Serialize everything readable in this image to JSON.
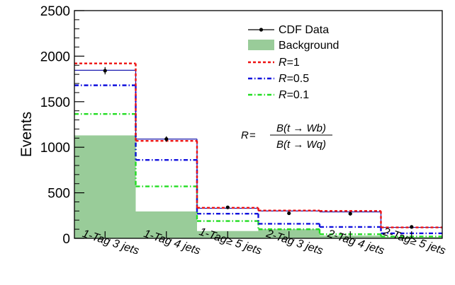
{
  "chart_data": {
    "type": "bar",
    "ylabel": "Events",
    "ylim": [
      0,
      2500
    ],
    "yticks": [
      0,
      500,
      1000,
      1500,
      2000,
      2500
    ],
    "yticks_labels": [
      "0",
      "500",
      "1000",
      "1500",
      "2000",
      "2500"
    ],
    "categories": [
      "1-Tag 3 jets",
      "1-Tag 4 jets",
      "1-Tag≥ 5 jets",
      "2-Tag 3 jets",
      "2-Tag 4 jets",
      "2-Tag≥ 5 jets"
    ],
    "series": [
      {
        "name": "CDF Data",
        "kind": "points",
        "values": [
          1840,
          1090,
          340,
          275,
          270,
          125
        ],
        "errors": [
          40,
          30,
          15,
          15,
          14,
          10
        ],
        "color": "#000000"
      },
      {
        "name": "Background",
        "kind": "filled",
        "values": [
          1130,
          295,
          80,
          100,
          30,
          15
        ],
        "color": "#99cc99"
      },
      {
        "name": "R=1",
        "kind": "step",
        "style": "dashed",
        "values": [
          1920,
          1070,
          335,
          305,
          300,
          120
        ],
        "color": "#ee1111"
      },
      {
        "name": "R=0.5",
        "kind": "step",
        "style": "dashdot",
        "values": [
          1680,
          860,
          270,
          160,
          125,
          55
        ],
        "color": "#1111dd"
      },
      {
        "name": "R=0.1",
        "kind": "step",
        "style": "dashdot",
        "values": [
          1365,
          570,
          190,
          100,
          45,
          20
        ],
        "color": "#22dd22"
      }
    ],
    "prediction_line": {
      "values": [
        1845,
        1090,
        330,
        300,
        290,
        120
      ],
      "color": "#1b1bb0"
    },
    "legend_position": "top-right",
    "legend": [
      {
        "label": "CDF Data"
      },
      {
        "label": "Background"
      },
      {
        "label_italic": "R",
        "label_rest": "=1"
      },
      {
        "label_italic": "R",
        "label_rest": "=0.5"
      },
      {
        "label_italic": "R",
        "label_rest": "=0.1"
      }
    ],
    "annotation": {
      "lhs": "R",
      "eq": "=",
      "numerator": "B(t → Wb)",
      "denominator": "B(t → Wq)"
    }
  }
}
